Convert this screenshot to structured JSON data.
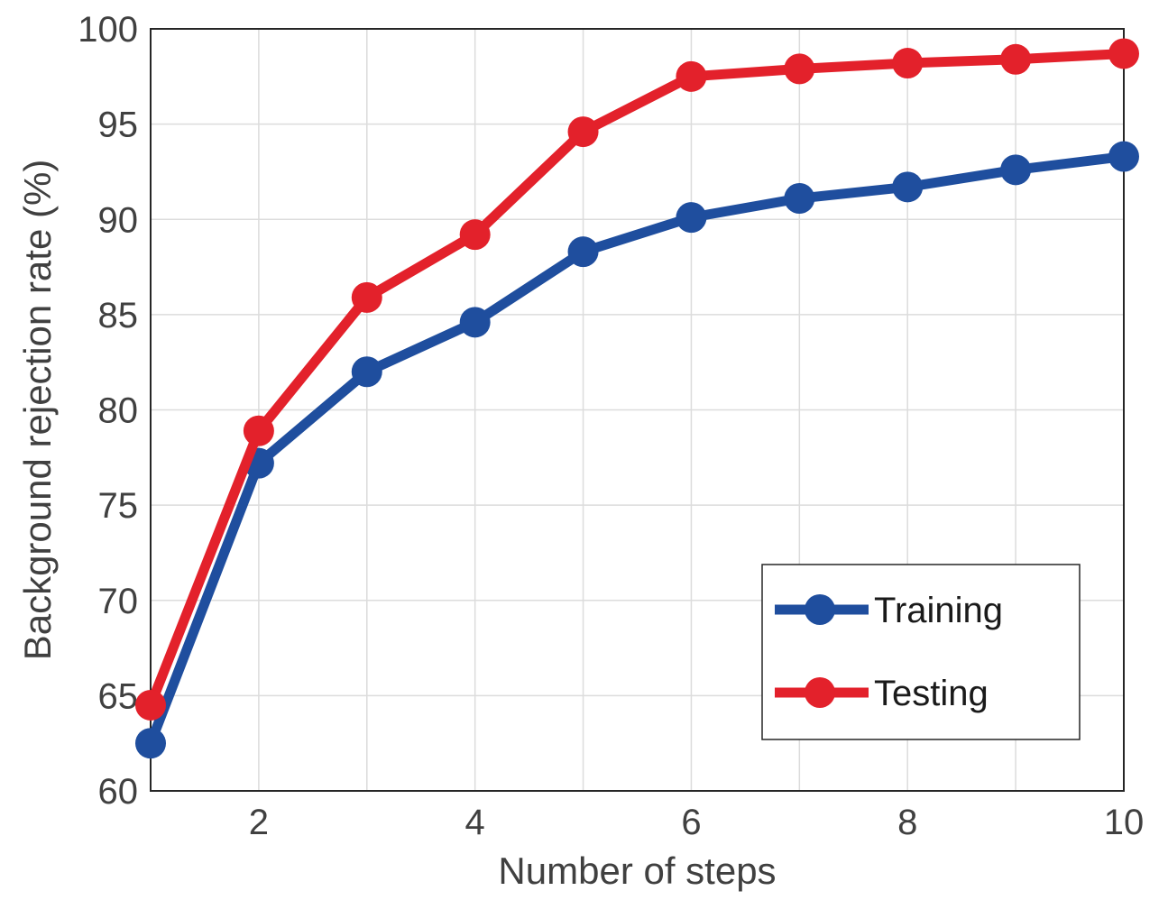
{
  "chart_data": {
    "type": "line",
    "xlabel": "Number of steps",
    "ylabel": "Background rejection rate (%)",
    "xlim": [
      1,
      10
    ],
    "ylim": [
      60,
      100
    ],
    "x": [
      1,
      2,
      3,
      4,
      5,
      6,
      7,
      8,
      9,
      10
    ],
    "xticks": [
      2,
      4,
      6,
      8,
      10
    ],
    "yticks": [
      60,
      65,
      70,
      75,
      80,
      85,
      90,
      95,
      100
    ],
    "grid": true,
    "legend_position": "bottom-right",
    "series": [
      {
        "name": "Training",
        "color": "#1f4e9e",
        "values": [
          62.5,
          77.2,
          82.0,
          84.6,
          88.3,
          90.1,
          91.1,
          91.7,
          92.6,
          93.3
        ]
      },
      {
        "name": "Testing",
        "color": "#e3212b",
        "values": [
          64.5,
          78.9,
          85.9,
          89.2,
          94.6,
          97.5,
          97.9,
          98.2,
          98.4,
          98.7
        ]
      }
    ]
  }
}
